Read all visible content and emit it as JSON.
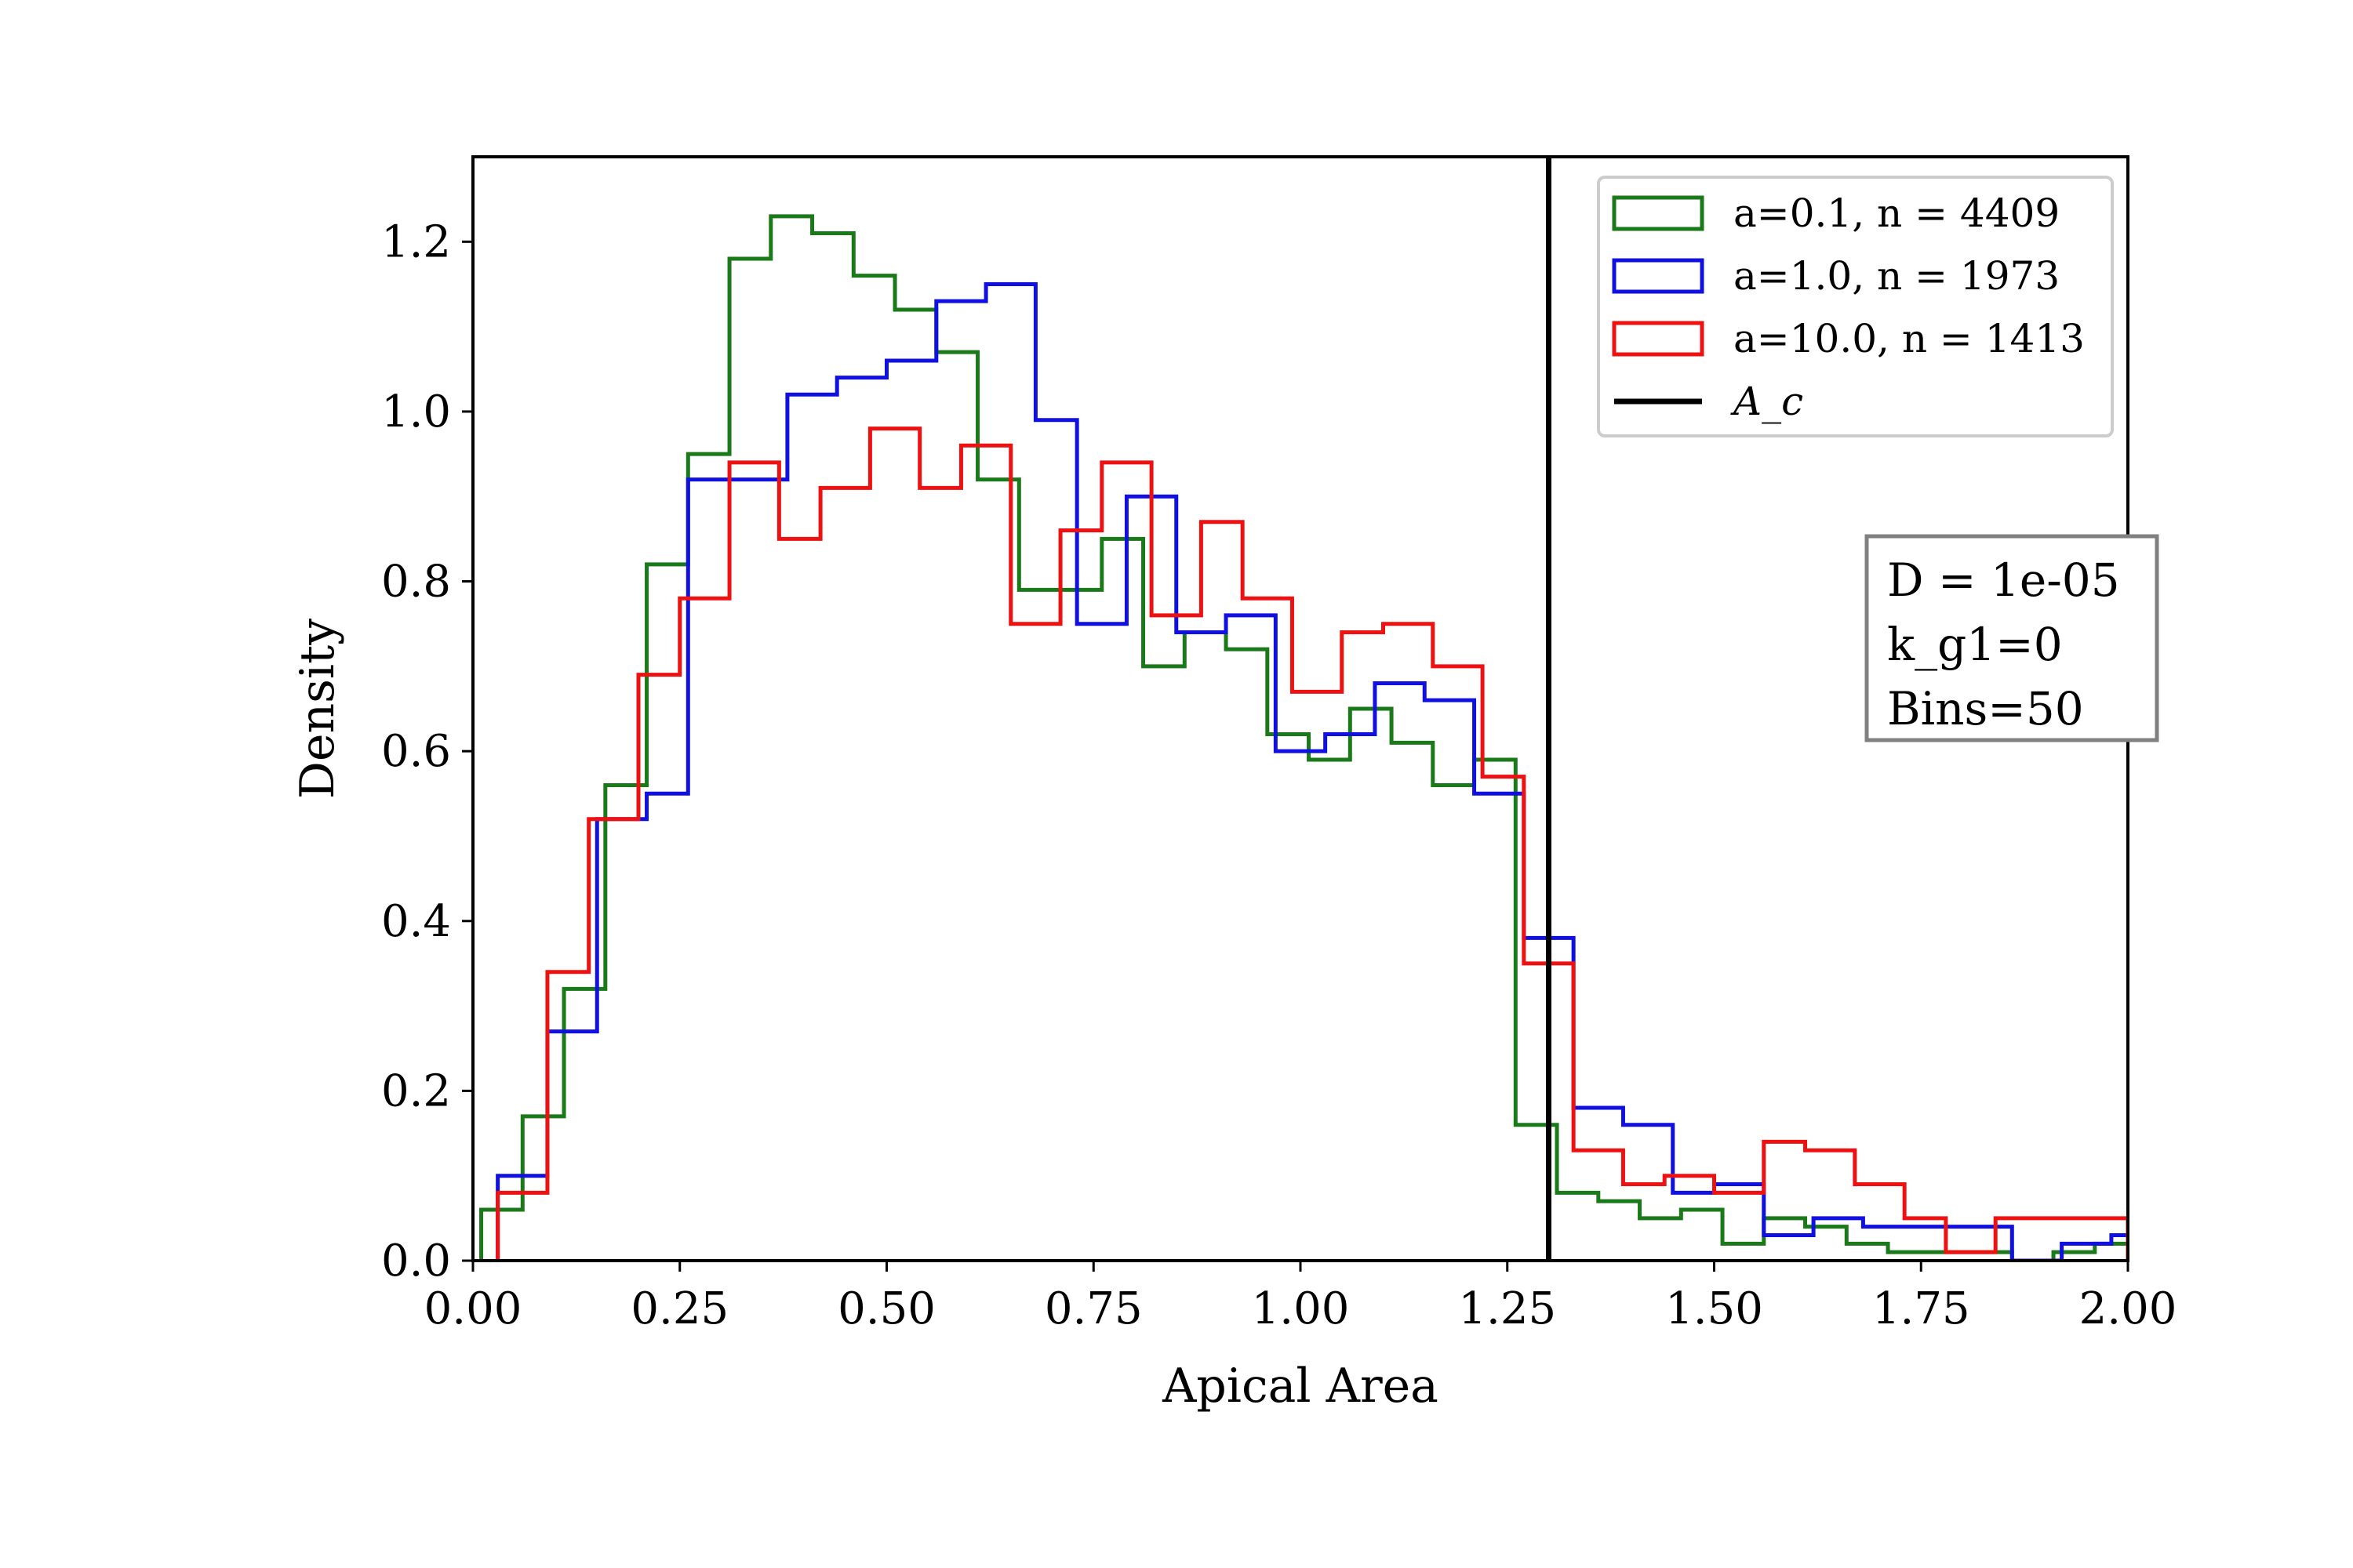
{
  "chart_data": {
    "type": "histogram-step",
    "xlabel": "Apical Area",
    "ylabel": "Density",
    "xlim": [
      0,
      2
    ],
    "ylim": [
      0,
      1.3
    ],
    "xticks": [
      0.0,
      0.25,
      0.5,
      0.75,
      1.0,
      1.25,
      1.5,
      1.75,
      2.0
    ],
    "xtick_labels": [
      "0.00",
      "0.25",
      "0.50",
      "0.75",
      "1.00",
      "1.25",
      "1.50",
      "1.75",
      "2.00"
    ],
    "yticks": [
      0.0,
      0.2,
      0.4,
      0.6,
      0.8,
      1.0,
      1.2
    ],
    "ytick_labels": [
      "0.0",
      "0.2",
      "0.4",
      "0.6",
      "0.8",
      "1.0",
      "1.2"
    ],
    "grid": false,
    "legend_position": "top-right",
    "series": [
      {
        "label": "a=0.1, n = 4409",
        "color": "#1a7a1a",
        "edges": [
          0.01,
          0.06,
          0.11,
          0.16,
          0.21,
          0.26,
          0.31,
          0.36,
          0.41,
          0.46,
          0.51,
          0.56,
          0.61,
          0.66,
          0.71,
          0.76,
          0.81,
          0.86,
          0.91,
          0.96,
          1.01,
          1.06,
          1.11,
          1.16,
          1.21,
          1.26,
          1.31,
          1.36,
          1.41,
          1.46,
          1.51,
          1.56,
          1.61,
          1.66,
          1.71,
          1.76,
          1.81,
          1.86,
          1.91,
          1.96,
          2.0
        ],
        "values": [
          0.06,
          0.17,
          0.32,
          0.56,
          0.82,
          0.95,
          1.18,
          1.23,
          1.21,
          1.16,
          1.12,
          1.07,
          0.92,
          0.79,
          0.79,
          0.85,
          0.7,
          0.74,
          0.72,
          0.62,
          0.59,
          0.65,
          0.61,
          0.56,
          0.59,
          0.16,
          0.08,
          0.07,
          0.05,
          0.06,
          0.02,
          0.05,
          0.04,
          0.02,
          0.01,
          0.01,
          0.01,
          0.0,
          0.01,
          0.02
        ]
      },
      {
        "label": "a=1.0, n = 1973",
        "color": "#1010e0",
        "edges": [
          0.03,
          0.09,
          0.15,
          0.21,
          0.26,
          0.32,
          0.38,
          0.44,
          0.5,
          0.56,
          0.62,
          0.68,
          0.73,
          0.79,
          0.85,
          0.91,
          0.97,
          1.03,
          1.09,
          1.15,
          1.21,
          1.27,
          1.33,
          1.39,
          1.45,
          1.5,
          1.56,
          1.62,
          1.68,
          1.74,
          1.8,
          1.86,
          1.92,
          1.98,
          2.0
        ],
        "values": [
          0.1,
          0.27,
          0.52,
          0.55,
          0.92,
          0.92,
          1.02,
          1.04,
          1.06,
          1.13,
          1.15,
          0.99,
          0.75,
          0.9,
          0.74,
          0.76,
          0.6,
          0.62,
          0.68,
          0.66,
          0.55,
          0.38,
          0.18,
          0.16,
          0.08,
          0.09,
          0.03,
          0.05,
          0.04,
          0.04,
          0.04,
          0.0,
          0.02,
          0.03
        ]
      },
      {
        "label": "a=10.0, n = 1413",
        "color": "#ee1111",
        "edges": [
          0.03,
          0.09,
          0.14,
          0.2,
          0.25,
          0.31,
          0.37,
          0.42,
          0.48,
          0.54,
          0.59,
          0.65,
          0.71,
          0.76,
          0.82,
          0.88,
          0.93,
          0.99,
          1.05,
          1.1,
          1.16,
          1.22,
          1.27,
          1.33,
          1.39,
          1.44,
          1.5,
          1.56,
          1.61,
          1.67,
          1.73,
          1.78,
          1.84,
          1.9,
          1.95,
          2.0
        ],
        "values": [
          0.08,
          0.34,
          0.52,
          0.69,
          0.78,
          0.94,
          0.85,
          0.91,
          0.98,
          0.91,
          0.96,
          0.75,
          0.86,
          0.94,
          0.76,
          0.87,
          0.78,
          0.67,
          0.74,
          0.75,
          0.7,
          0.57,
          0.35,
          0.13,
          0.09,
          0.1,
          0.08,
          0.14,
          0.13,
          0.09,
          0.05,
          0.01,
          0.05,
          0.05,
          0.05
        ]
      }
    ],
    "vline": {
      "x": 1.3,
      "label": "A_c",
      "color": "#000000"
    },
    "annotation": [
      "D = 1e-05",
      "k_g1=0",
      "Bins=50"
    ]
  }
}
